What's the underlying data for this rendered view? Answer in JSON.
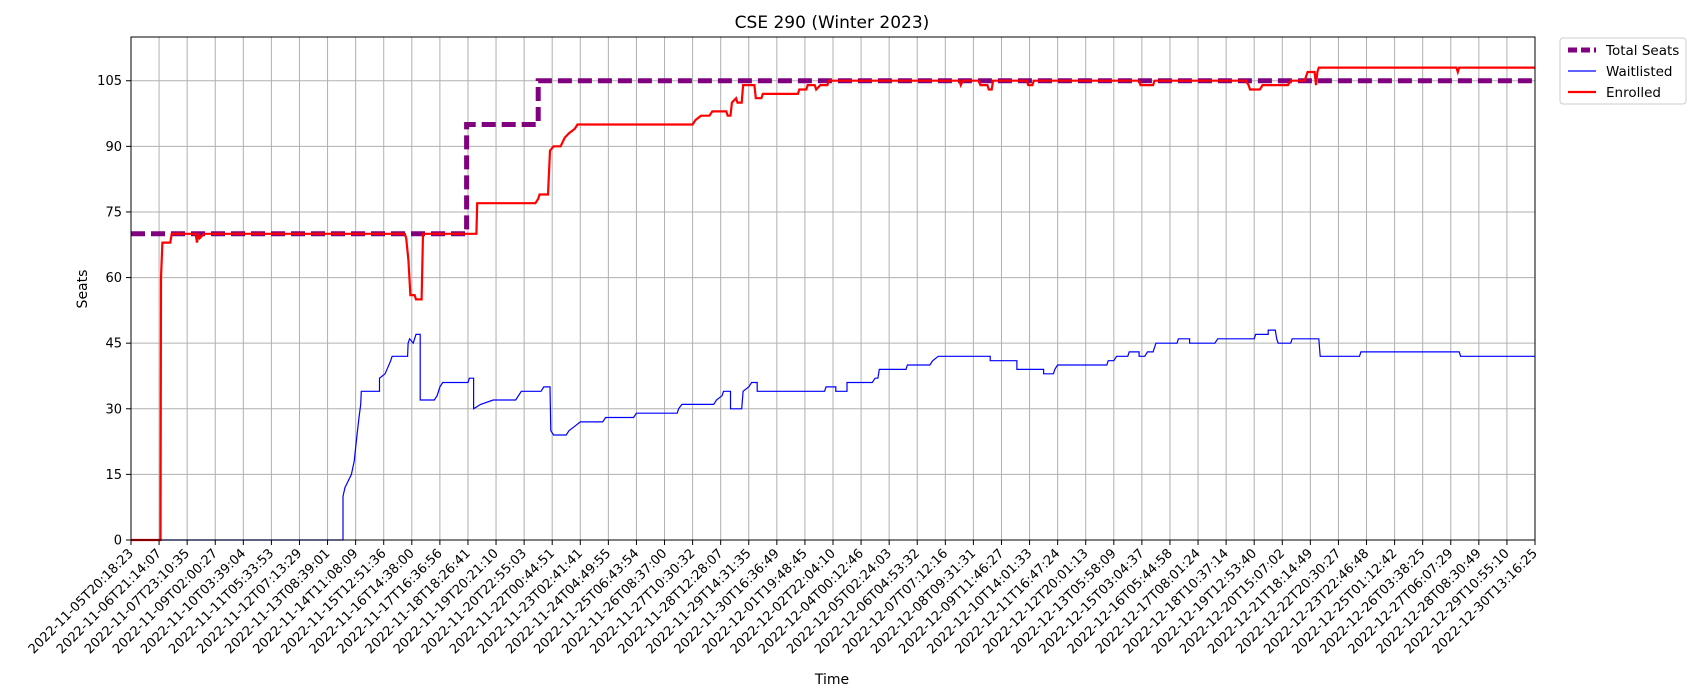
{
  "chart_data": {
    "type": "line",
    "title": "CSE 290 (Winter 2023)",
    "xlabel": "Time",
    "ylabel": "Seats",
    "ylim": [
      0,
      115
    ],
    "yticks": [
      0,
      15,
      30,
      45,
      60,
      75,
      90,
      105
    ],
    "grid": true,
    "legend": "outside-top-right",
    "x_tick_labels": [
      "2022-11-05T20:18:23",
      "2022-11-06T21:14:07",
      "2022-11-07T23:10:35",
      "2022-11-09T02:00:27",
      "2022-11-10T03:39:04",
      "2022-11-11T05:33:53",
      "2022-11-12T07:13:29",
      "2022-11-13T08:39:01",
      "2022-11-14T11:08:09",
      "2022-11-15T12:51:36",
      "2022-11-16T14:38:00",
      "2022-11-17T16:36:56",
      "2022-11-18T18:26:41",
      "2022-11-19T20:21:10",
      "2022-11-20T22:55:03",
      "2022-11-22T00:44:51",
      "2022-11-23T02:41:41",
      "2022-11-24T04:49:55",
      "2022-11-25T06:43:54",
      "2022-11-26T08:37:00",
      "2022-11-27T10:30:32",
      "2022-11-28T12:28:07",
      "2022-11-29T14:31:35",
      "2022-11-30T16:36:49",
      "2022-12-01T19:48:45",
      "2022-12-02T22:04:10",
      "2022-12-04T00:12:46",
      "2022-12-05T02:24:03",
      "2022-12-06T04:53:32",
      "2022-12-07T07:12:16",
      "2022-12-08T09:31:31",
      "2022-12-09T11:46:27",
      "2022-12-10T14:01:33",
      "2022-12-11T16:47:24",
      "2022-12-12T20:01:13",
      "2022-12-13T05:58:09",
      "2022-12-15T03:04:37",
      "2022-12-16T05:44:58",
      "2022-12-17T08:01:24",
      "2022-12-18T10:37:14",
      "2022-12-19T12:53:40",
      "2022-12-20T15:07:02",
      "2022-12-21T18:14:49",
      "2022-12-22T20:30:27",
      "2022-12-23T22:46:48",
      "2022-12-25T01:12:42",
      "2022-12-26T03:38:25",
      "2022-12-27T06:07:29",
      "2022-12-28T08:30:49",
      "2022-12-29T10:55:10",
      "2022-12-30T13:16:25"
    ],
    "x_range": [
      0,
      50
    ],
    "series": [
      {
        "name": "Total Seats",
        "color": "#800080",
        "style": "dashed-thick",
        "points": [
          [
            0,
            70
          ],
          [
            11.95,
            70
          ],
          [
            11.95,
            95
          ],
          [
            14.5,
            95
          ],
          [
            14.5,
            105
          ],
          [
            50,
            105
          ]
        ]
      },
      {
        "name": "Waitlisted",
        "color": "#0000ff",
        "style": "thin",
        "points": [
          [
            0,
            0
          ],
          [
            7.55,
            0
          ],
          [
            7.55,
            10
          ],
          [
            7.62,
            12
          ],
          [
            7.85,
            15
          ],
          [
            7.95,
            18
          ],
          [
            8.05,
            24
          ],
          [
            8.12,
            28
          ],
          [
            8.18,
            31
          ],
          [
            8.2,
            34
          ],
          [
            8.85,
            34
          ],
          [
            8.85,
            37
          ],
          [
            9.05,
            38
          ],
          [
            9.25,
            41
          ],
          [
            9.3,
            42
          ],
          [
            9.85,
            42
          ],
          [
            9.87,
            45
          ],
          [
            9.92,
            46
          ],
          [
            10.05,
            45
          ],
          [
            10.15,
            47
          ],
          [
            10.3,
            47
          ],
          [
            10.3,
            32
          ],
          [
            10.8,
            32
          ],
          [
            10.9,
            33
          ],
          [
            11.0,
            35
          ],
          [
            11.1,
            36
          ],
          [
            12.0,
            36
          ],
          [
            12.05,
            37
          ],
          [
            12.2,
            37
          ],
          [
            12.2,
            30
          ],
          [
            12.45,
            31
          ],
          [
            12.9,
            32
          ],
          [
            13.7,
            32
          ],
          [
            13.9,
            34
          ],
          [
            14.6,
            34
          ],
          [
            14.7,
            35
          ],
          [
            14.92,
            35
          ],
          [
            14.95,
            25
          ],
          [
            15.05,
            24
          ],
          [
            15.5,
            24
          ],
          [
            15.6,
            25
          ],
          [
            15.8,
            26
          ],
          [
            16.0,
            27
          ],
          [
            16.8,
            27
          ],
          [
            16.9,
            28
          ],
          [
            17.9,
            28
          ],
          [
            18.0,
            29
          ],
          [
            19.45,
            29
          ],
          [
            19.5,
            30
          ],
          [
            19.62,
            31
          ],
          [
            20.75,
            31
          ],
          [
            20.85,
            32
          ],
          [
            21.05,
            33
          ],
          [
            21.1,
            34
          ],
          [
            21.35,
            34
          ],
          [
            21.35,
            30
          ],
          [
            21.75,
            30
          ],
          [
            21.8,
            34
          ],
          [
            22.0,
            35
          ],
          [
            22.1,
            36
          ],
          [
            22.3,
            36
          ],
          [
            22.3,
            34
          ],
          [
            24.7,
            34
          ],
          [
            24.75,
            35
          ],
          [
            25.1,
            35
          ],
          [
            25.1,
            34
          ],
          [
            25.5,
            34
          ],
          [
            25.5,
            36
          ],
          [
            26.4,
            36
          ],
          [
            26.5,
            37
          ],
          [
            26.6,
            37
          ],
          [
            26.65,
            39
          ],
          [
            27.6,
            39
          ],
          [
            27.65,
            40
          ],
          [
            28.45,
            40
          ],
          [
            28.55,
            41
          ],
          [
            28.75,
            42
          ],
          [
            30.6,
            42
          ],
          [
            30.6,
            41
          ],
          [
            31.55,
            41
          ],
          [
            31.55,
            39
          ],
          [
            32.5,
            39
          ],
          [
            32.5,
            38
          ],
          [
            32.85,
            38
          ],
          [
            32.9,
            39
          ],
          [
            33.0,
            40
          ],
          [
            34.75,
            40
          ],
          [
            34.8,
            41
          ],
          [
            35.0,
            41
          ],
          [
            35.1,
            42
          ],
          [
            35.5,
            42
          ],
          [
            35.55,
            43
          ],
          [
            35.9,
            43
          ],
          [
            35.9,
            42
          ],
          [
            36.1,
            42
          ],
          [
            36.2,
            43
          ],
          [
            36.4,
            43
          ],
          [
            36.5,
            45
          ],
          [
            37.25,
            45
          ],
          [
            37.3,
            46
          ],
          [
            37.7,
            46
          ],
          [
            37.7,
            45
          ],
          [
            38.6,
            45
          ],
          [
            38.7,
            46
          ],
          [
            40.0,
            46
          ],
          [
            40.05,
            47
          ],
          [
            40.5,
            47
          ],
          [
            40.5,
            48
          ],
          [
            40.75,
            48
          ],
          [
            40.8,
            46
          ],
          [
            40.85,
            45
          ],
          [
            41.3,
            45
          ],
          [
            41.35,
            46
          ],
          [
            42.3,
            46
          ],
          [
            42.35,
            42
          ],
          [
            43.75,
            42
          ],
          [
            43.8,
            43
          ],
          [
            47.3,
            43
          ],
          [
            47.35,
            42
          ],
          [
            50,
            42
          ]
        ]
      },
      {
        "name": "Enrolled",
        "color": "#ff0000",
        "style": "medium",
        "points": [
          [
            0,
            0
          ],
          [
            1.05,
            0
          ],
          [
            1.07,
            60
          ],
          [
            1.12,
            68
          ],
          [
            1.4,
            68
          ],
          [
            1.45,
            70
          ],
          [
            2.3,
            70
          ],
          [
            2.35,
            68
          ],
          [
            2.4,
            70
          ],
          [
            2.45,
            69
          ],
          [
            2.6,
            70
          ],
          [
            9.75,
            70
          ],
          [
            9.8,
            69
          ],
          [
            9.88,
            64
          ],
          [
            9.95,
            56
          ],
          [
            10.1,
            56
          ],
          [
            10.15,
            55
          ],
          [
            10.35,
            55
          ],
          [
            10.4,
            70
          ],
          [
            12.0,
            70
          ],
          [
            12.3,
            70
          ],
          [
            12.33,
            77
          ],
          [
            14.4,
            77
          ],
          [
            14.5,
            78
          ],
          [
            14.55,
            79
          ],
          [
            14.85,
            79
          ],
          [
            14.92,
            89
          ],
          [
            15.05,
            90
          ],
          [
            15.3,
            90
          ],
          [
            15.45,
            92
          ],
          [
            15.6,
            93
          ],
          [
            15.8,
            94
          ],
          [
            15.9,
            95
          ],
          [
            20.0,
            95
          ],
          [
            20.1,
            96
          ],
          [
            20.3,
            97
          ],
          [
            20.6,
            97
          ],
          [
            20.7,
            98
          ],
          [
            21.2,
            98
          ],
          [
            21.25,
            97
          ],
          [
            21.35,
            97
          ],
          [
            21.4,
            100
          ],
          [
            21.55,
            101
          ],
          [
            21.6,
            100
          ],
          [
            21.75,
            100
          ],
          [
            21.8,
            104
          ],
          [
            22.2,
            104
          ],
          [
            22.25,
            101
          ],
          [
            22.45,
            101
          ],
          [
            22.5,
            102
          ],
          [
            23.75,
            102
          ],
          [
            23.8,
            103
          ],
          [
            24.05,
            103
          ],
          [
            24.1,
            104
          ],
          [
            24.35,
            104
          ],
          [
            24.4,
            103
          ],
          [
            24.55,
            104
          ],
          [
            24.8,
            104
          ],
          [
            24.85,
            105
          ],
          [
            29.5,
            105
          ],
          [
            29.55,
            104
          ],
          [
            29.62,
            105
          ],
          [
            30.2,
            105
          ],
          [
            30.25,
            104
          ],
          [
            30.5,
            104
          ],
          [
            30.55,
            103
          ],
          [
            30.65,
            103
          ],
          [
            30.7,
            105
          ],
          [
            31.9,
            105
          ],
          [
            31.95,
            104
          ],
          [
            32.1,
            104
          ],
          [
            32.15,
            105
          ],
          [
            35.9,
            105
          ],
          [
            35.95,
            104
          ],
          [
            36.4,
            104
          ],
          [
            36.45,
            105
          ],
          [
            39.7,
            105
          ],
          [
            39.8,
            104
          ],
          [
            39.85,
            103
          ],
          [
            40.2,
            103
          ],
          [
            40.3,
            104
          ],
          [
            41.2,
            104
          ],
          [
            41.3,
            105
          ],
          [
            41.8,
            105
          ],
          [
            41.85,
            106
          ],
          [
            41.9,
            107
          ],
          [
            42.15,
            107
          ],
          [
            42.2,
            104
          ],
          [
            42.25,
            107
          ],
          [
            42.3,
            108
          ],
          [
            47.2,
            108
          ],
          [
            47.25,
            107
          ],
          [
            47.3,
            108
          ],
          [
            50,
            108
          ]
        ]
      }
    ]
  }
}
